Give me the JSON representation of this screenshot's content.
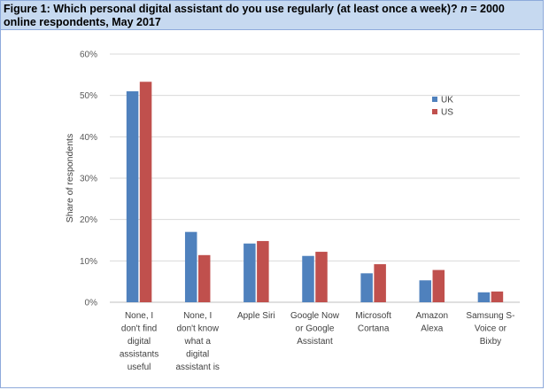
{
  "caption": {
    "prefix": "Figure 1: Which personal digital assistant do you use regularly (at least once a week)? ",
    "n_label": "n",
    "suffix": " = 2000 online respondents, May 2017"
  },
  "colors": {
    "uk": "#4f81bd",
    "us": "#c0504d",
    "grid": "#d9d9d9"
  },
  "chart_data": {
    "type": "bar",
    "title": "",
    "ylabel": "Share of respondents",
    "xlabel": "",
    "ylim": [
      0,
      60
    ],
    "yticks": [
      0,
      10,
      20,
      30,
      40,
      50,
      60
    ],
    "ytick_labels": [
      "0%",
      "10%",
      "20%",
      "30%",
      "40%",
      "50%",
      "60%"
    ],
    "legend_position": "top-right",
    "categories": [
      [
        "None, I",
        "don't find",
        "digital",
        "assistants",
        "useful"
      ],
      [
        "None, I",
        "don't know",
        "what a",
        "digital",
        "assistant is"
      ],
      [
        "Apple Siri"
      ],
      [
        "Google Now",
        "or Google",
        "Assistant"
      ],
      [
        "Microsoft",
        "Cortana"
      ],
      [
        "Amazon",
        "Alexa"
      ],
      [
        "Samsung S-",
        "Voice or",
        "Bixby"
      ]
    ],
    "series": [
      {
        "name": "UK",
        "values": [
          51,
          17,
          14.2,
          11.2,
          7,
          5.3,
          2.4
        ]
      },
      {
        "name": "US",
        "values": [
          53.3,
          11.4,
          14.8,
          12.2,
          9.2,
          7.8,
          2.6
        ]
      }
    ]
  }
}
